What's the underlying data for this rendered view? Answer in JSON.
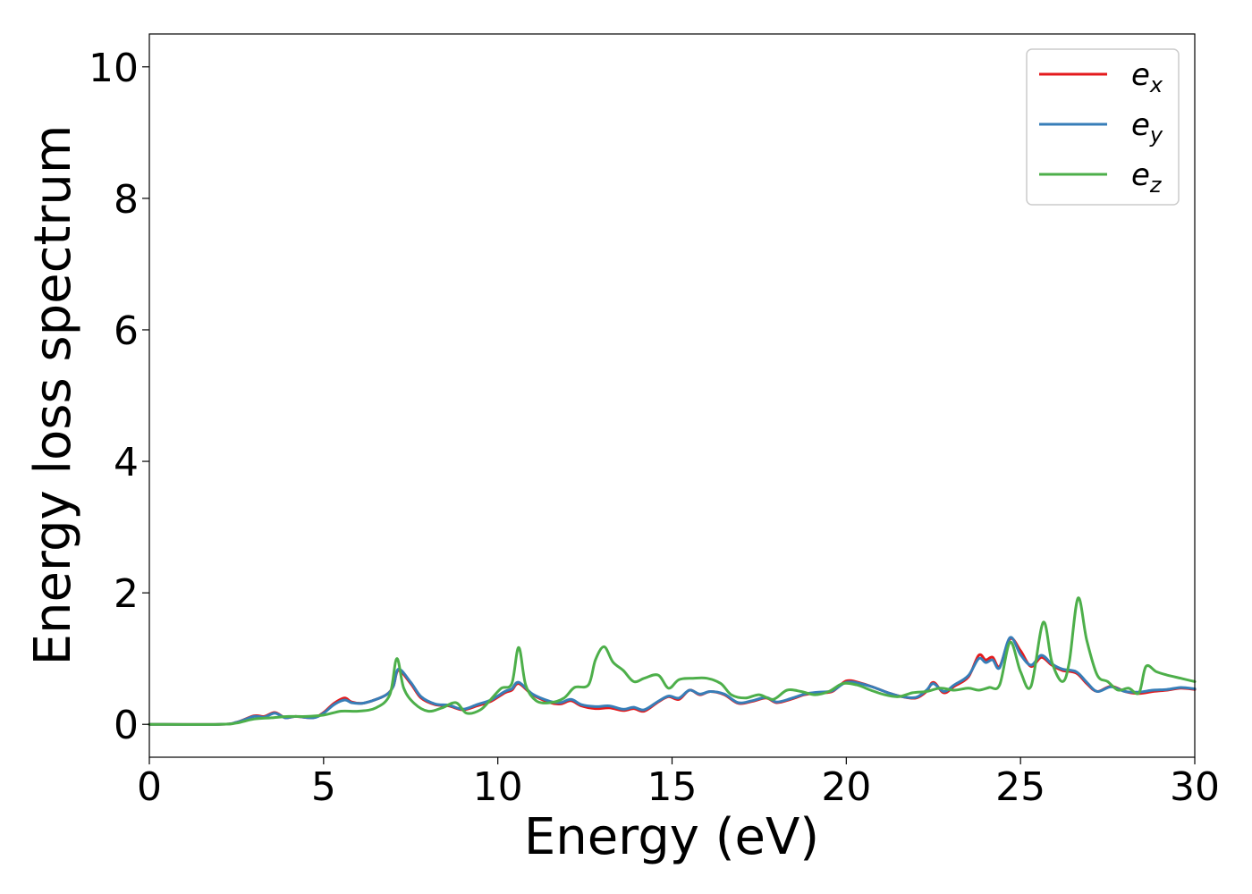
{
  "chart_data": {
    "type": "line",
    "xlabel": "Energy (eV)",
    "ylabel": "Energy loss spectrum",
    "xlim": [
      0,
      30
    ],
    "ylim": [
      -0.5,
      10.5
    ],
    "xticks": [
      0,
      5,
      10,
      15,
      20,
      25,
      30
    ],
    "yticks": [
      0,
      2,
      4,
      6,
      8,
      10
    ],
    "grid": false,
    "legend_position": "top-right",
    "series": [
      {
        "name": "e_x",
        "label_base": "e",
        "label_sub": "x",
        "color": "#e41a1c",
        "points": [
          [
            0,
            0
          ],
          [
            2,
            0
          ],
          [
            2.5,
            0.03
          ],
          [
            3,
            0.13
          ],
          [
            3.3,
            0.12
          ],
          [
            3.6,
            0.18
          ],
          [
            3.9,
            0.1
          ],
          [
            4.2,
            0.12
          ],
          [
            4.7,
            0.1
          ],
          [
            5.0,
            0.18
          ],
          [
            5.3,
            0.32
          ],
          [
            5.6,
            0.4
          ],
          [
            5.8,
            0.34
          ],
          [
            6.1,
            0.32
          ],
          [
            6.4,
            0.36
          ],
          [
            6.8,
            0.45
          ],
          [
            7.0,
            0.58
          ],
          [
            7.15,
            0.82
          ],
          [
            7.5,
            0.62
          ],
          [
            7.8,
            0.4
          ],
          [
            8.2,
            0.3
          ],
          [
            8.6,
            0.28
          ],
          [
            9.0,
            0.22
          ],
          [
            9.4,
            0.28
          ],
          [
            9.8,
            0.35
          ],
          [
            10.2,
            0.48
          ],
          [
            10.4,
            0.52
          ],
          [
            10.6,
            0.62
          ],
          [
            11.0,
            0.45
          ],
          [
            11.5,
            0.33
          ],
          [
            11.8,
            0.31
          ],
          [
            12.1,
            0.36
          ],
          [
            12.4,
            0.28
          ],
          [
            12.8,
            0.24
          ],
          [
            13.2,
            0.25
          ],
          [
            13.6,
            0.21
          ],
          [
            13.9,
            0.24
          ],
          [
            14.2,
            0.2
          ],
          [
            14.6,
            0.34
          ],
          [
            14.9,
            0.42
          ],
          [
            15.2,
            0.38
          ],
          [
            15.5,
            0.52
          ],
          [
            15.8,
            0.45
          ],
          [
            16.1,
            0.5
          ],
          [
            16.5,
            0.45
          ],
          [
            16.9,
            0.32
          ],
          [
            17.3,
            0.35
          ],
          [
            17.7,
            0.4
          ],
          [
            18.0,
            0.33
          ],
          [
            18.4,
            0.38
          ],
          [
            18.8,
            0.45
          ],
          [
            19.2,
            0.48
          ],
          [
            19.6,
            0.5
          ],
          [
            20.0,
            0.66
          ],
          [
            20.4,
            0.63
          ],
          [
            20.8,
            0.56
          ],
          [
            21.2,
            0.48
          ],
          [
            21.6,
            0.42
          ],
          [
            22.0,
            0.4
          ],
          [
            22.3,
            0.5
          ],
          [
            22.5,
            0.64
          ],
          [
            22.8,
            0.48
          ],
          [
            23.1,
            0.58
          ],
          [
            23.5,
            0.72
          ],
          [
            23.8,
            1.05
          ],
          [
            24.0,
            0.98
          ],
          [
            24.2,
            1.02
          ],
          [
            24.4,
            0.88
          ],
          [
            24.7,
            1.3
          ],
          [
            25.0,
            1.12
          ],
          [
            25.3,
            0.88
          ],
          [
            25.6,
            1.02
          ],
          [
            25.9,
            0.9
          ],
          [
            26.2,
            0.82
          ],
          [
            26.6,
            0.78
          ],
          [
            26.9,
            0.62
          ],
          [
            27.2,
            0.5
          ],
          [
            27.6,
            0.58
          ],
          [
            28.0,
            0.5
          ],
          [
            28.4,
            0.47
          ],
          [
            28.8,
            0.5
          ],
          [
            29.2,
            0.52
          ],
          [
            29.6,
            0.55
          ],
          [
            30.0,
            0.53
          ]
        ]
      },
      {
        "name": "e_y",
        "label_base": "e",
        "label_sub": "y",
        "color": "#377eb8",
        "points": [
          [
            0,
            0
          ],
          [
            2,
            0
          ],
          [
            2.5,
            0.03
          ],
          [
            3,
            0.12
          ],
          [
            3.3,
            0.11
          ],
          [
            3.6,
            0.17
          ],
          [
            3.9,
            0.1
          ],
          [
            4.2,
            0.12
          ],
          [
            4.7,
            0.1
          ],
          [
            5.0,
            0.17
          ],
          [
            5.3,
            0.3
          ],
          [
            5.6,
            0.37
          ],
          [
            5.8,
            0.33
          ],
          [
            6.1,
            0.32
          ],
          [
            6.4,
            0.36
          ],
          [
            6.8,
            0.45
          ],
          [
            7.0,
            0.58
          ],
          [
            7.15,
            0.84
          ],
          [
            7.5,
            0.64
          ],
          [
            7.8,
            0.42
          ],
          [
            8.2,
            0.31
          ],
          [
            8.6,
            0.29
          ],
          [
            9.0,
            0.23
          ],
          [
            9.4,
            0.3
          ],
          [
            9.8,
            0.37
          ],
          [
            10.2,
            0.5
          ],
          [
            10.4,
            0.54
          ],
          [
            10.6,
            0.64
          ],
          [
            11.0,
            0.46
          ],
          [
            11.5,
            0.35
          ],
          [
            11.8,
            0.33
          ],
          [
            12.1,
            0.38
          ],
          [
            12.4,
            0.3
          ],
          [
            12.8,
            0.27
          ],
          [
            13.2,
            0.28
          ],
          [
            13.6,
            0.23
          ],
          [
            13.9,
            0.26
          ],
          [
            14.2,
            0.22
          ],
          [
            14.6,
            0.35
          ],
          [
            14.9,
            0.43
          ],
          [
            15.2,
            0.4
          ],
          [
            15.5,
            0.52
          ],
          [
            15.8,
            0.46
          ],
          [
            16.1,
            0.5
          ],
          [
            16.5,
            0.46
          ],
          [
            16.9,
            0.33
          ],
          [
            17.3,
            0.36
          ],
          [
            17.7,
            0.41
          ],
          [
            18.0,
            0.34
          ],
          [
            18.4,
            0.39
          ],
          [
            18.8,
            0.46
          ],
          [
            19.2,
            0.49
          ],
          [
            19.6,
            0.51
          ],
          [
            20.0,
            0.64
          ],
          [
            20.4,
            0.62
          ],
          [
            20.8,
            0.56
          ],
          [
            21.2,
            0.48
          ],
          [
            21.6,
            0.42
          ],
          [
            22.0,
            0.41
          ],
          [
            22.3,
            0.52
          ],
          [
            22.5,
            0.62
          ],
          [
            22.8,
            0.5
          ],
          [
            23.1,
            0.6
          ],
          [
            23.5,
            0.74
          ],
          [
            23.8,
            1.0
          ],
          [
            24.0,
            0.94
          ],
          [
            24.2,
            0.98
          ],
          [
            24.4,
            0.86
          ],
          [
            24.7,
            1.32
          ],
          [
            25.0,
            1.06
          ],
          [
            25.3,
            0.9
          ],
          [
            25.6,
            1.05
          ],
          [
            25.9,
            0.92
          ],
          [
            26.2,
            0.84
          ],
          [
            26.6,
            0.8
          ],
          [
            26.9,
            0.64
          ],
          [
            27.2,
            0.5
          ],
          [
            27.6,
            0.57
          ],
          [
            28.0,
            0.5
          ],
          [
            28.4,
            0.49
          ],
          [
            28.8,
            0.52
          ],
          [
            29.2,
            0.53
          ],
          [
            29.6,
            0.56
          ],
          [
            30.0,
            0.54
          ]
        ]
      },
      {
        "name": "e_z",
        "label_base": "e",
        "label_sub": "z",
        "color": "#4daf4a",
        "points": [
          [
            0,
            0
          ],
          [
            2,
            0
          ],
          [
            2.5,
            0.02
          ],
          [
            3,
            0.08
          ],
          [
            3.5,
            0.1
          ],
          [
            4.0,
            0.12
          ],
          [
            4.5,
            0.12
          ],
          [
            5.0,
            0.14
          ],
          [
            5.5,
            0.2
          ],
          [
            6.0,
            0.2
          ],
          [
            6.5,
            0.25
          ],
          [
            6.9,
            0.45
          ],
          [
            7.1,
            1.0
          ],
          [
            7.3,
            0.55
          ],
          [
            7.6,
            0.32
          ],
          [
            8.0,
            0.2
          ],
          [
            8.4,
            0.25
          ],
          [
            8.8,
            0.33
          ],
          [
            9.1,
            0.17
          ],
          [
            9.5,
            0.22
          ],
          [
            9.8,
            0.38
          ],
          [
            10.1,
            0.55
          ],
          [
            10.4,
            0.62
          ],
          [
            10.6,
            1.17
          ],
          [
            10.8,
            0.6
          ],
          [
            11.1,
            0.36
          ],
          [
            11.5,
            0.33
          ],
          [
            11.9,
            0.4
          ],
          [
            12.2,
            0.56
          ],
          [
            12.6,
            0.6
          ],
          [
            12.8,
            0.98
          ],
          [
            13.05,
            1.18
          ],
          [
            13.3,
            0.95
          ],
          [
            13.6,
            0.82
          ],
          [
            13.9,
            0.65
          ],
          [
            14.2,
            0.7
          ],
          [
            14.6,
            0.75
          ],
          [
            14.9,
            0.55
          ],
          [
            15.2,
            0.68
          ],
          [
            15.6,
            0.7
          ],
          [
            16.0,
            0.7
          ],
          [
            16.4,
            0.62
          ],
          [
            16.7,
            0.45
          ],
          [
            17.1,
            0.4
          ],
          [
            17.5,
            0.45
          ],
          [
            17.9,
            0.38
          ],
          [
            18.3,
            0.52
          ],
          [
            18.7,
            0.5
          ],
          [
            19.1,
            0.45
          ],
          [
            19.5,
            0.5
          ],
          [
            19.9,
            0.62
          ],
          [
            20.3,
            0.6
          ],
          [
            20.7,
            0.52
          ],
          [
            21.1,
            0.45
          ],
          [
            21.5,
            0.42
          ],
          [
            21.9,
            0.48
          ],
          [
            22.3,
            0.5
          ],
          [
            22.7,
            0.55
          ],
          [
            23.1,
            0.52
          ],
          [
            23.5,
            0.55
          ],
          [
            23.8,
            0.52
          ],
          [
            24.1,
            0.56
          ],
          [
            24.4,
            0.6
          ],
          [
            24.7,
            1.25
          ],
          [
            25.0,
            0.8
          ],
          [
            25.3,
            0.58
          ],
          [
            25.65,
            1.55
          ],
          [
            25.9,
            0.95
          ],
          [
            26.2,
            0.65
          ],
          [
            26.4,
            0.95
          ],
          [
            26.65,
            1.92
          ],
          [
            26.9,
            1.28
          ],
          [
            27.2,
            0.75
          ],
          [
            27.5,
            0.65
          ],
          [
            27.8,
            0.52
          ],
          [
            28.1,
            0.55
          ],
          [
            28.4,
            0.48
          ],
          [
            28.6,
            0.88
          ],
          [
            28.9,
            0.8
          ],
          [
            29.2,
            0.75
          ],
          [
            29.6,
            0.7
          ],
          [
            30.0,
            0.65
          ]
        ]
      }
    ]
  }
}
